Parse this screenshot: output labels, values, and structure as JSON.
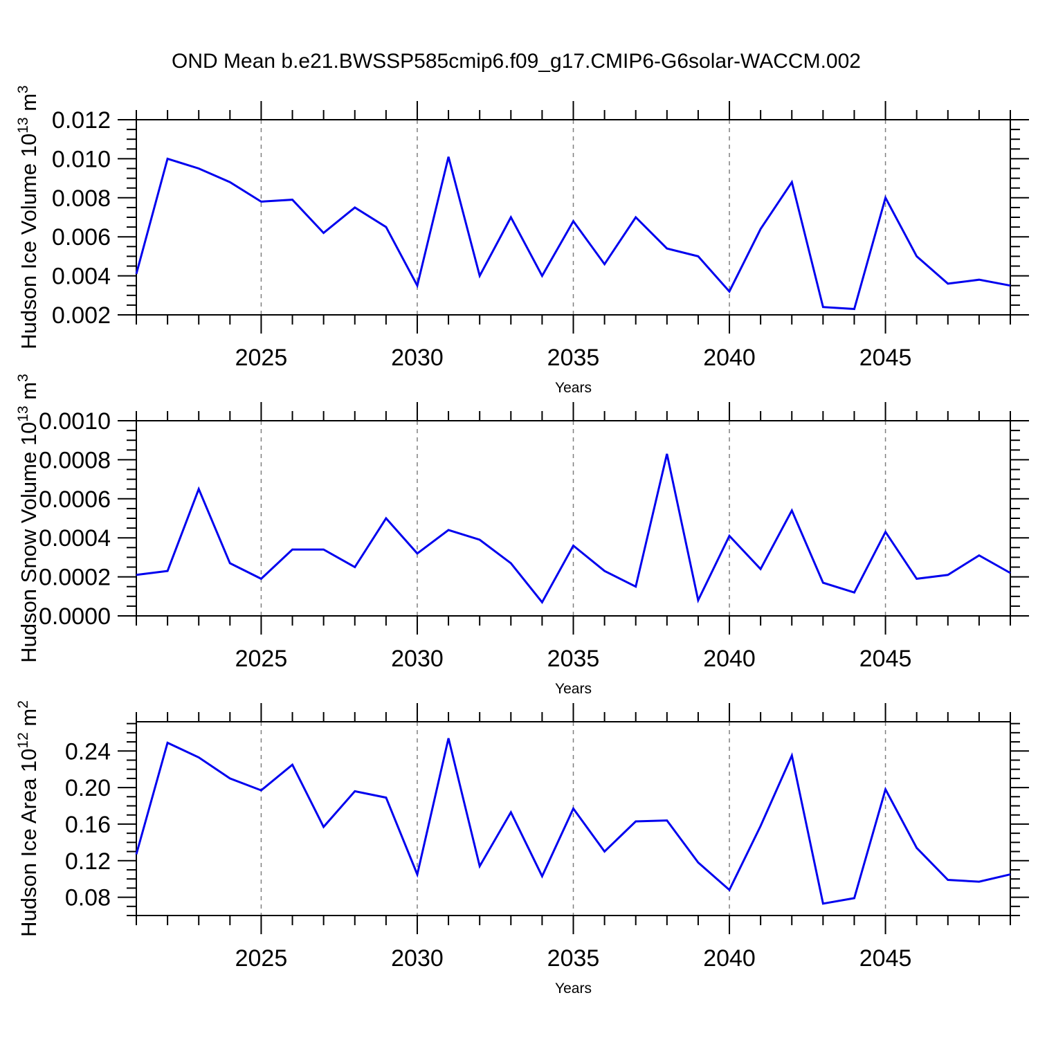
{
  "title": "OND Mean b.e21.BWSSP585cmip6.f09_g17.CMIP6-G6solar-WACCM.002",
  "colors": {
    "line": "#0000ee",
    "frame": "#000000",
    "grid": "#7f7f7f",
    "text": "#000000",
    "background": "#ffffff"
  },
  "chart_data": [
    {
      "id": "ice-volume",
      "type": "line",
      "ylabel_text": "Hudson Ice Volume 10^13 m^3",
      "ylabel_parts": [
        {
          "t": "Hudson Ice Volume 10"
        },
        {
          "t": "13",
          "sup": true
        },
        {
          "t": " m"
        },
        {
          "t": "3",
          "sup": true
        }
      ],
      "xlabel": "Years",
      "x": [
        2021,
        2022,
        2023,
        2024,
        2025,
        2026,
        2027,
        2028,
        2029,
        2030,
        2031,
        2032,
        2033,
        2034,
        2035,
        2036,
        2037,
        2038,
        2039,
        2040,
        2041,
        2042,
        2043,
        2044,
        2045,
        2046,
        2047,
        2048,
        2049
      ],
      "values": [
        0.0041,
        0.01,
        0.0095,
        0.0088,
        0.0078,
        0.0079,
        0.0062,
        0.0075,
        0.0065,
        0.0035,
        0.0101,
        0.004,
        0.007,
        0.004,
        0.0068,
        0.0046,
        0.007,
        0.0054,
        0.005,
        0.0032,
        0.0064,
        0.0088,
        0.0024,
        0.0023,
        0.008,
        0.005,
        0.0036,
        0.0038,
        0.0035
      ],
      "xlim": [
        2021,
        2049
      ],
      "ylim": [
        0.002,
        0.012
      ],
      "yticks": [
        0.002,
        0.004,
        0.006,
        0.008,
        0.01,
        0.012
      ],
      "ytick_labels": [
        "0.002",
        "0.004",
        "0.006",
        "0.008",
        "0.010",
        "0.012"
      ],
      "yminor_step": 0.0005,
      "xticks_major": [
        2025,
        2030,
        2035,
        2040,
        2045
      ],
      "xtick_labels": [
        "2025",
        "2030",
        "2035",
        "2040",
        "2045"
      ],
      "xminor_step": 1,
      "grid": "vertical-dashed-at-major-xticks",
      "legend": "none"
    },
    {
      "id": "snow-volume",
      "type": "line",
      "ylabel_text": "Hudson Snow Volume 10^13 m^3",
      "ylabel_parts": [
        {
          "t": "Hudson Snow Volume 10"
        },
        {
          "t": "13",
          "sup": true
        },
        {
          "t": " m"
        },
        {
          "t": "3",
          "sup": true
        }
      ],
      "xlabel": "Years",
      "x": [
        2021,
        2022,
        2023,
        2024,
        2025,
        2026,
        2027,
        2028,
        2029,
        2030,
        2031,
        2032,
        2033,
        2034,
        2035,
        2036,
        2037,
        2038,
        2039,
        2040,
        2041,
        2042,
        2043,
        2044,
        2045,
        2046,
        2047,
        2048,
        2049
      ],
      "values": [
        0.00021,
        0.00023,
        0.00065,
        0.00027,
        0.00019,
        0.00034,
        0.00034,
        0.00025,
        0.0005,
        0.00032,
        0.00044,
        0.00039,
        0.00027,
        7e-05,
        0.00036,
        0.00023,
        0.00015,
        0.00083,
        8e-05,
        0.00041,
        0.00024,
        0.00054,
        0.00017,
        0.00012,
        0.00043,
        0.00019,
        0.00021,
        0.00031,
        0.00022
      ],
      "xlim": [
        2021,
        2049
      ],
      "ylim": [
        0.0,
        0.001
      ],
      "yticks": [
        0.0,
        0.0002,
        0.0004,
        0.0006,
        0.0008,
        0.001
      ],
      "ytick_labels": [
        "0.0000",
        "0.0002",
        "0.0004",
        "0.0006",
        "0.0008",
        "0.0010"
      ],
      "yminor_step": 5e-05,
      "xticks_major": [
        2025,
        2030,
        2035,
        2040,
        2045
      ],
      "xtick_labels": [
        "2025",
        "2030",
        "2035",
        "2040",
        "2045"
      ],
      "xminor_step": 1,
      "grid": "vertical-dashed-at-major-xticks",
      "legend": "none"
    },
    {
      "id": "ice-area",
      "type": "line",
      "ylabel_text": "Hudson Ice Area 10^12 m^2",
      "ylabel_parts": [
        {
          "t": "Hudson Ice Area 10"
        },
        {
          "t": "12",
          "sup": true
        },
        {
          "t": " m"
        },
        {
          "t": "2",
          "sup": true
        }
      ],
      "xlabel": "Years",
      "x": [
        2021,
        2022,
        2023,
        2024,
        2025,
        2026,
        2027,
        2028,
        2029,
        2030,
        2031,
        2032,
        2033,
        2034,
        2035,
        2036,
        2037,
        2038,
        2039,
        2040,
        2041,
        2042,
        2043,
        2044,
        2045,
        2046,
        2047,
        2048,
        2049
      ],
      "values": [
        0.127,
        0.249,
        0.233,
        0.21,
        0.197,
        0.225,
        0.157,
        0.196,
        0.189,
        0.105,
        0.254,
        0.114,
        0.173,
        0.103,
        0.177,
        0.13,
        0.163,
        0.164,
        0.118,
        0.088,
        0.158,
        0.235,
        0.073,
        0.079,
        0.198,
        0.134,
        0.099,
        0.097,
        0.105
      ],
      "xlim": [
        2021,
        2049
      ],
      "ylim": [
        0.06,
        0.272
      ],
      "yticks": [
        0.08,
        0.12,
        0.16,
        0.2,
        0.24
      ],
      "ytick_labels": [
        "0.08",
        "0.12",
        "0.16",
        "0.20",
        "0.24"
      ],
      "yminor_step": 0.01,
      "xticks_major": [
        2025,
        2030,
        2035,
        2040,
        2045
      ],
      "xtick_labels": [
        "2025",
        "2030",
        "2035",
        "2040",
        "2045"
      ],
      "xminor_step": 1,
      "grid": "vertical-dashed-at-major-xticks",
      "legend": "none"
    }
  ]
}
